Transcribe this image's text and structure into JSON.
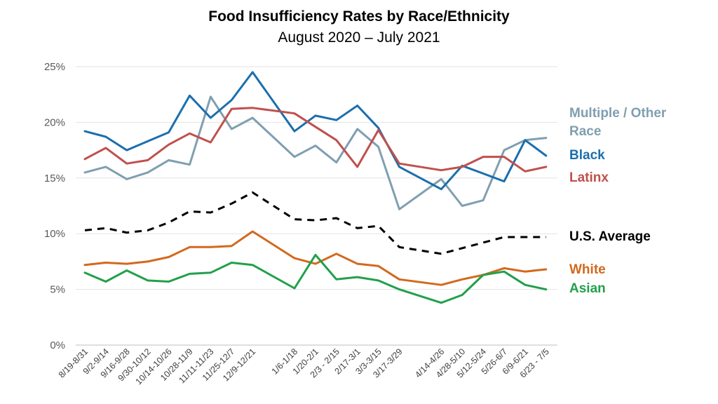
{
  "chart_data": {
    "type": "line",
    "title": "Food Insufficiency Rates by Race/Ethnicity",
    "subtitle": "August 2020 – July 2021",
    "xlabel": "",
    "ylabel": "",
    "ylim": [
      0,
      25
    ],
    "y_ticks": [
      "0%",
      "5%",
      "10%",
      "15%",
      "20%",
      "25%"
    ],
    "grid": true,
    "legend_position": "right",
    "x_positions": [
      0,
      1,
      2,
      3,
      4,
      5,
      6,
      7,
      8,
      10,
      11,
      12,
      13,
      14,
      15,
      17,
      18,
      19,
      20,
      21,
      22
    ],
    "categories": [
      "8/19-8/31",
      "9/2-9/14",
      "9/16-9/28",
      "9/30-10/12",
      "10/14-10/26",
      "10/28-11/9",
      "11/11-11/23",
      "11/25-12/7",
      "12/9-12/21",
      "1/6-1/18",
      "1/20-2/1",
      "2/3 - 2/15",
      "2/17-3/1",
      "3/3-3/15",
      "3/17-3/29",
      "4/14-4/26",
      "4/28-5/10",
      "5/12-5/24",
      "5/26-6/7",
      "6/9-6/21",
      "6/23 - 7/5"
    ],
    "series": [
      {
        "name": "Multiple / Other Race",
        "legend_lines": [
          "Multiple / Other",
          "Race"
        ],
        "color": "#7f9fb0",
        "dashed": false,
        "values": [
          15.5,
          16.0,
          14.9,
          15.5,
          16.6,
          16.2,
          22.3,
          19.4,
          20.4,
          16.9,
          17.9,
          16.4,
          19.4,
          17.8,
          12.2,
          14.9,
          12.5,
          13.0,
          17.5,
          18.4,
          18.6
        ]
      },
      {
        "name": "Black",
        "legend_lines": [
          "Black"
        ],
        "color": "#1b6fad",
        "dashed": false,
        "values": [
          19.2,
          18.7,
          17.5,
          18.3,
          19.1,
          22.4,
          20.4,
          22.0,
          24.5,
          19.2,
          20.6,
          20.2,
          21.5,
          19.5,
          16.0,
          14.0,
          16.1,
          15.4,
          14.7,
          18.4,
          17.0
        ]
      },
      {
        "name": "Latinx",
        "legend_lines": [
          "Latinx"
        ],
        "color": "#c0504d",
        "dashed": false,
        "values": [
          16.7,
          17.7,
          16.3,
          16.6,
          18.0,
          19.0,
          18.2,
          21.2,
          21.3,
          20.8,
          19.6,
          18.4,
          16.0,
          19.3,
          16.3,
          15.7,
          16.0,
          16.9,
          16.9,
          15.6,
          16.0
        ]
      },
      {
        "name": "U.S. Average",
        "legend_lines": [
          "U.S. Average"
        ],
        "color": "#000000",
        "dashed": true,
        "values": [
          10.3,
          10.5,
          10.1,
          10.3,
          11.0,
          12.0,
          11.9,
          12.7,
          13.7,
          11.3,
          11.2,
          11.4,
          10.5,
          10.7,
          8.8,
          8.2,
          8.7,
          9.2,
          9.7,
          9.7,
          9.7
        ]
      },
      {
        "name": "White",
        "legend_lines": [
          "White"
        ],
        "color": "#d2691e",
        "dashed": false,
        "values": [
          7.2,
          7.4,
          7.3,
          7.5,
          7.9,
          8.8,
          8.8,
          8.9,
          10.2,
          7.8,
          7.3,
          8.2,
          7.3,
          7.1,
          5.9,
          5.4,
          5.9,
          6.3,
          6.9,
          6.6,
          6.8
        ]
      },
      {
        "name": "Asian",
        "legend_lines": [
          "Asian"
        ],
        "color": "#22a04b",
        "dashed": false,
        "values": [
          6.5,
          5.7,
          6.7,
          5.8,
          5.7,
          6.4,
          6.5,
          7.4,
          7.2,
          5.1,
          8.1,
          5.9,
          6.1,
          5.8,
          5.0,
          3.8,
          4.5,
          6.3,
          6.6,
          5.4,
          5.0
        ]
      }
    ]
  }
}
